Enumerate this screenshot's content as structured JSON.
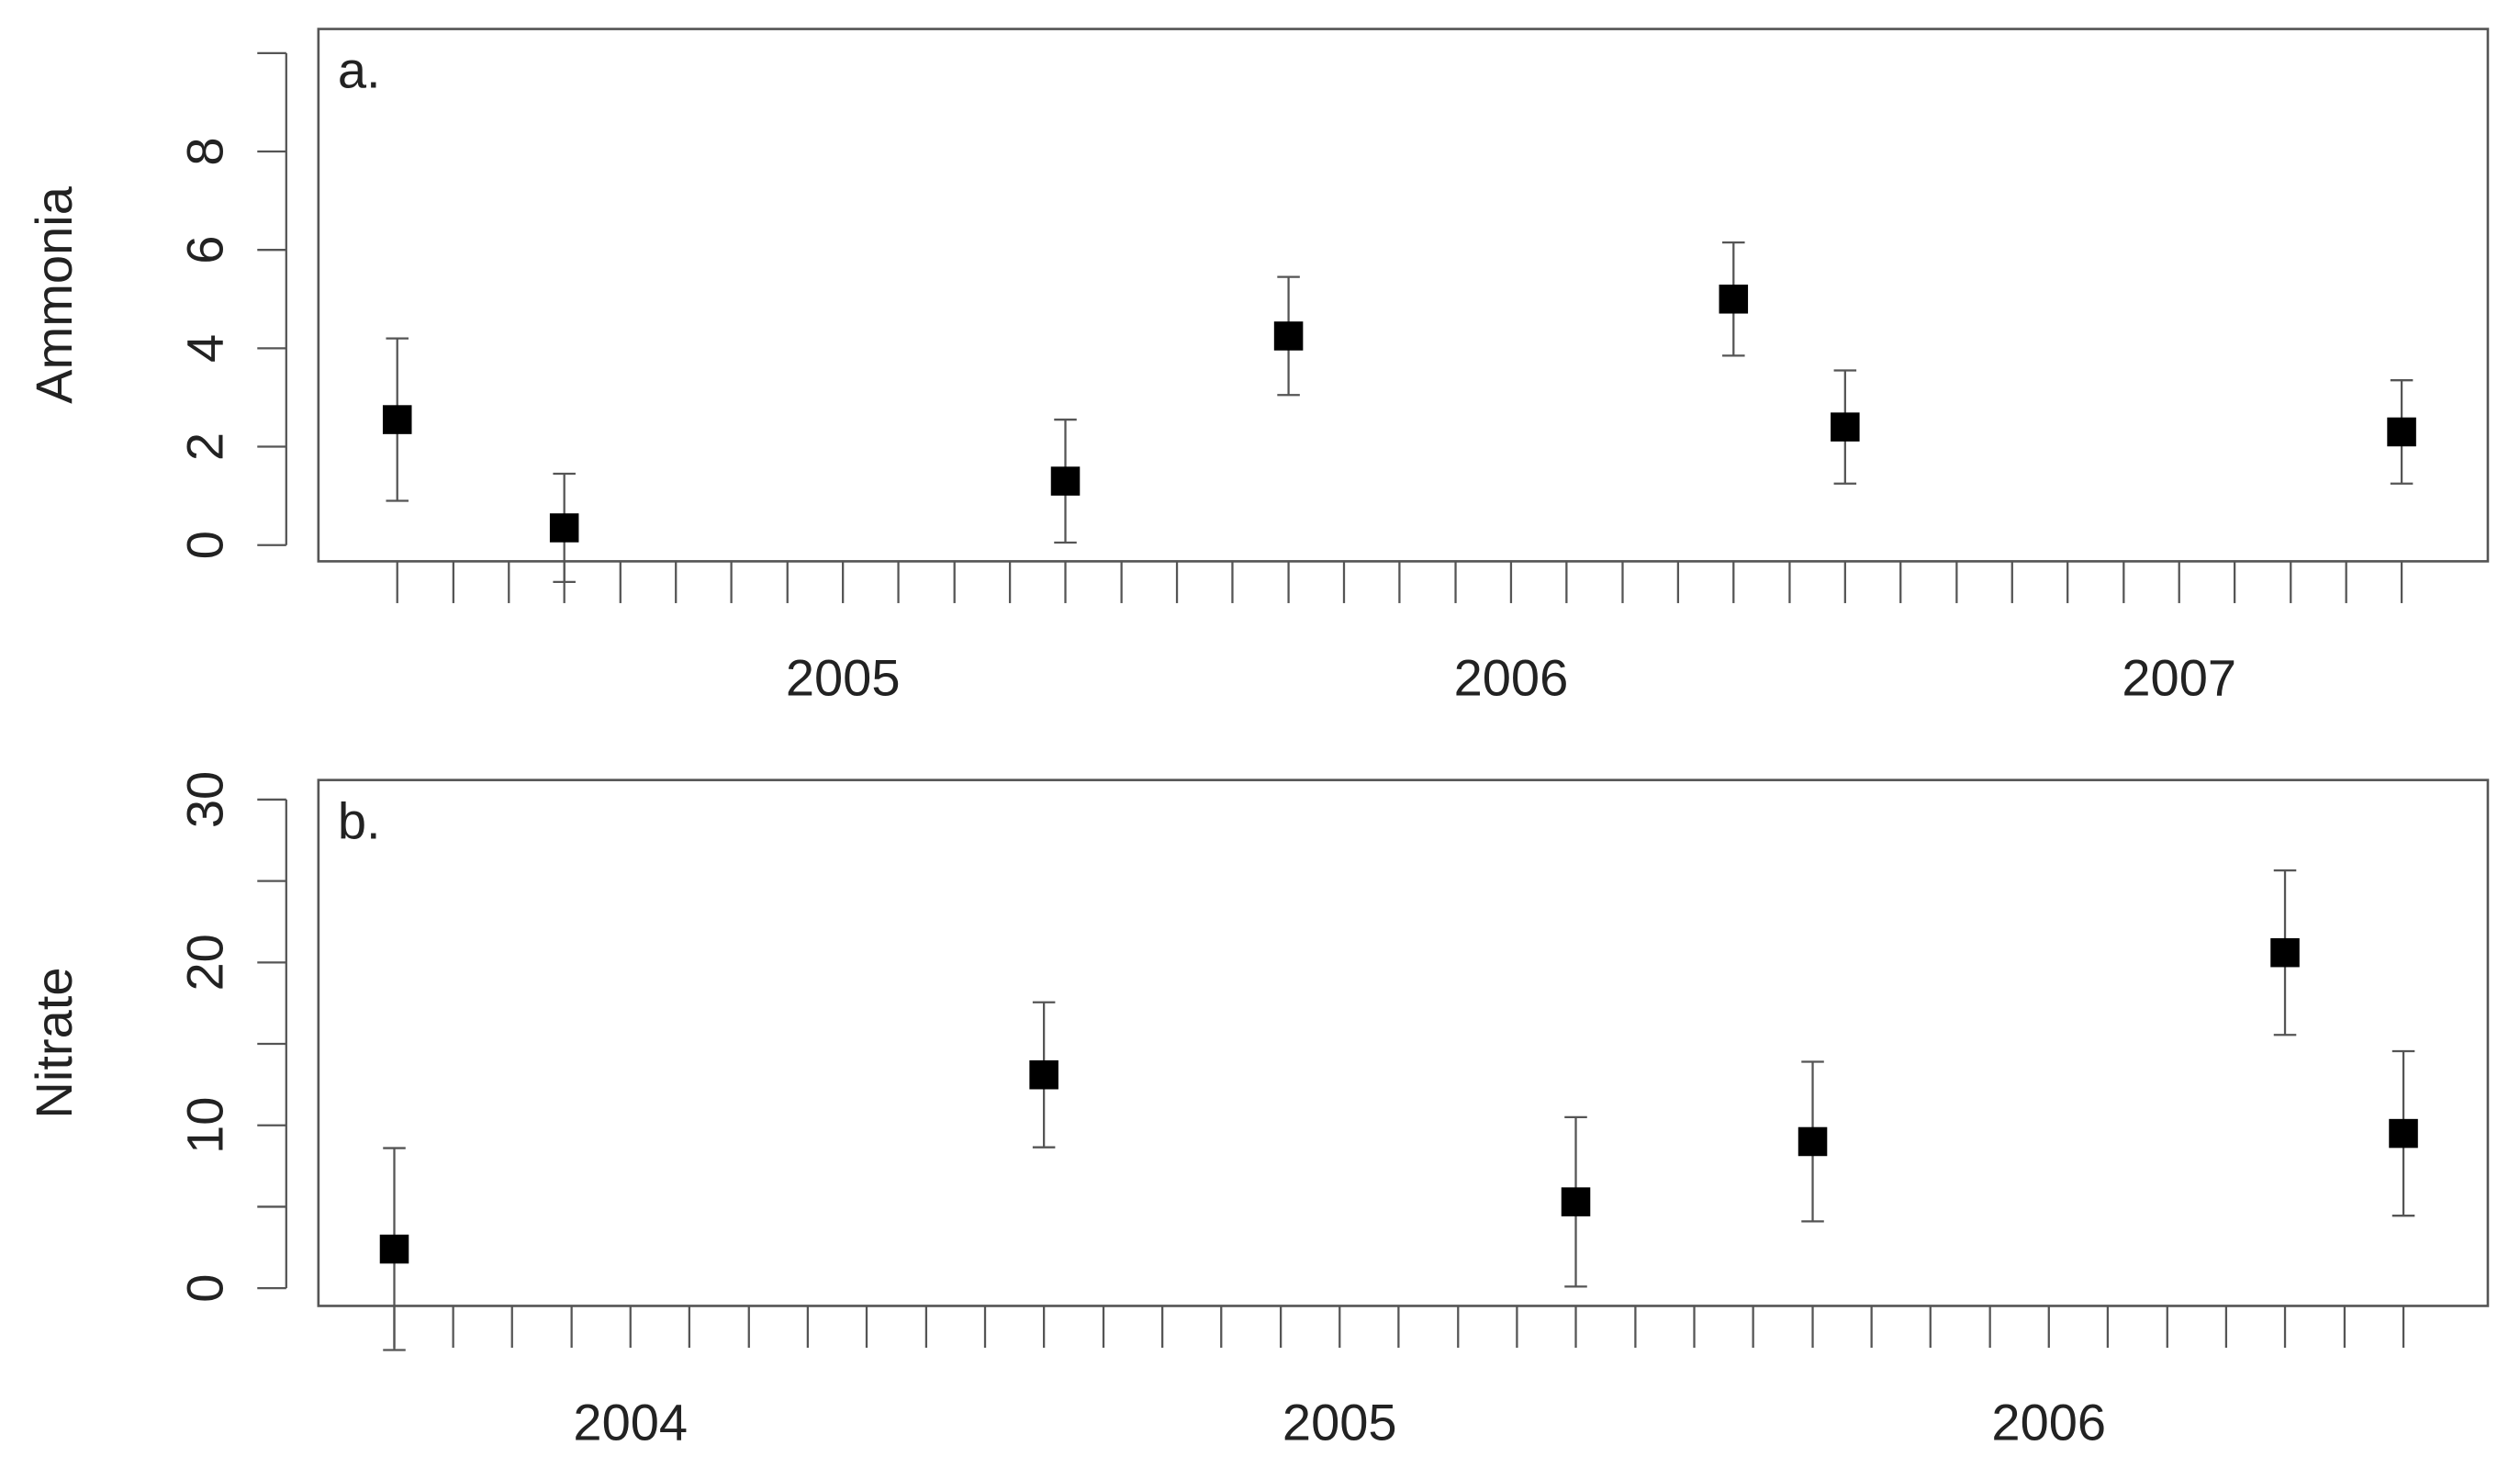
{
  "chart_data": [
    {
      "type": "scatter",
      "panel_label": "a.",
      "y_label": "Ammonia",
      "color": "#000000",
      "error_color": "#555555",
      "x": [
        2004.333,
        2004.583,
        2005.333,
        2005.667,
        2006.333,
        2006.5,
        2007.333
      ],
      "values": [
        2.55,
        0.35,
        1.3,
        4.25,
        5.0,
        2.4,
        2.3
      ],
      "errors": [
        1.65,
        1.1,
        1.25,
        1.2,
        1.15,
        1.15,
        1.05
      ],
      "xlim": [
        2004.215,
        2007.462
      ],
      "xticks": [
        {
          "value": 2005,
          "label": "2005"
        },
        {
          "value": 2006,
          "label": "2006"
        },
        {
          "value": 2007,
          "label": "2007"
        }
      ],
      "xminorticks": [
        2004.333,
        2004.417,
        2004.5,
        2004.583,
        2004.667,
        2004.75,
        2004.833,
        2004.917,
        2005.083,
        2005.167,
        2005.25,
        2005.333,
        2005.417,
        2005.5,
        2005.583,
        2005.667,
        2005.75,
        2005.833,
        2005.917,
        2006.083,
        2006.167,
        2006.25,
        2006.333,
        2006.417,
        2006.5,
        2006.583,
        2006.667,
        2006.75,
        2006.833,
        2006.917,
        2007.083,
        2007.167,
        2007.25,
        2007.333
      ],
      "ylim": [
        -0.33,
        10.49
      ],
      "yticks": [
        0,
        2,
        4,
        6,
        8
      ],
      "yminorticks": [
        10
      ]
    },
    {
      "type": "scatter",
      "panel_label": "b.",
      "y_label": "Nitrate",
      "color": "#000000",
      "error_color": "#555555",
      "x": [
        2003.667,
        2004.583,
        2005.333,
        2005.667,
        2006.333,
        2006.5
      ],
      "values": [
        2.4,
        13.1,
        5.3,
        9.0,
        20.6,
        9.5
      ],
      "errors": [
        6.2,
        4.45,
        5.2,
        4.9,
        5.05,
        5.05
      ],
      "xlim": [
        2003.56,
        2006.619
      ],
      "xticks": [
        {
          "value": 2004,
          "label": "2004"
        },
        {
          "value": 2005,
          "label": "2005"
        },
        {
          "value": 2006,
          "label": "2006"
        }
      ],
      "xminorticks": [
        2003.667,
        2003.75,
        2003.833,
        2003.917,
        2004.083,
        2004.167,
        2004.25,
        2004.333,
        2004.417,
        2004.5,
        2004.583,
        2004.667,
        2004.75,
        2004.833,
        2004.917,
        2005.083,
        2005.167,
        2005.25,
        2005.333,
        2005.417,
        2005.5,
        2005.583,
        2005.667,
        2005.75,
        2005.833,
        2005.917,
        2006.083,
        2006.167,
        2006.25,
        2006.333,
        2006.417,
        2006.5
      ],
      "ylim": [
        -1.09,
        31.2
      ],
      "yticks": [
        0,
        10,
        20,
        30
      ],
      "yminorticks": [
        5,
        15,
        25
      ]
    }
  ]
}
